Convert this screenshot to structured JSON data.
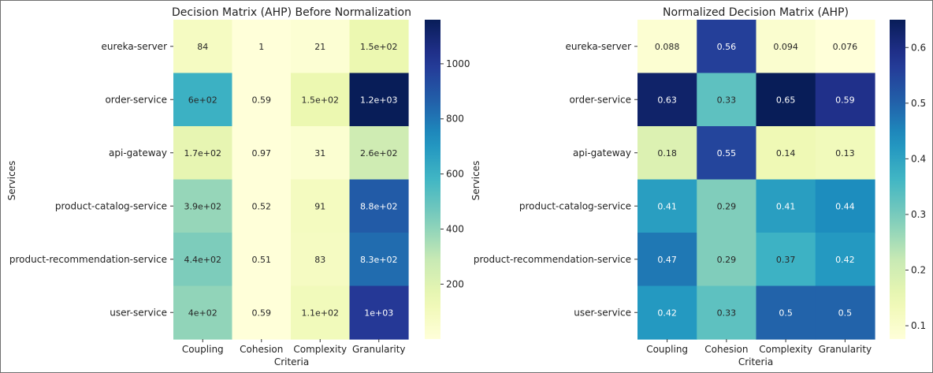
{
  "chart_data": [
    {
      "type": "heatmap",
      "title": "Decision Matrix (AHP) Before Normalization",
      "xlabel": "Criteria",
      "ylabel": "Services",
      "x": [
        "Coupling",
        "Cohesion",
        "Complexity",
        "Granularity"
      ],
      "y": [
        "eureka-server",
        "order-service",
        "api-gateway",
        "product-catalog-service",
        "product-recommendation-service",
        "user-service"
      ],
      "values": [
        [
          84,
          1,
          21,
          150
        ],
        [
          600,
          0.59,
          150,
          1200
        ],
        [
          170,
          0.97,
          31,
          260
        ],
        [
          390,
          0.52,
          91,
          880
        ],
        [
          440,
          0.51,
          83,
          830
        ],
        [
          400,
          0.59,
          110,
          1000
        ]
      ],
      "annotations": [
        [
          "84",
          "1",
          "21",
          "1.5e+02"
        ],
        [
          "6e+02",
          "0.59",
          "1.5e+02",
          "1.2e+03"
        ],
        [
          "1.7e+02",
          "0.97",
          "31",
          "2.6e+02"
        ],
        [
          "3.9e+02",
          "0.52",
          "91",
          "8.8e+02"
        ],
        [
          "4.4e+02",
          "0.51",
          "83",
          "8.3e+02"
        ],
        [
          "4e+02",
          "0.59",
          "1.1e+02",
          "1e+03"
        ]
      ],
      "colorbar": {
        "cmap": "YlGnBu",
        "vmin": 0.51,
        "vmax": 1160,
        "ticks": [
          200,
          400,
          600,
          800,
          1000
        ],
        "tick_labels": [
          "200",
          "400",
          "600",
          "800",
          "1000"
        ]
      }
    },
    {
      "type": "heatmap",
      "title": "Normalized Decision Matrix (AHP)",
      "xlabel": "Criteria",
      "ylabel": "Services",
      "x": [
        "Coupling",
        "Cohesion",
        "Complexity",
        "Granularity"
      ],
      "y": [
        "eureka-server",
        "order-service",
        "api-gateway",
        "product-catalog-service",
        "product-recommendation-service",
        "user-service"
      ],
      "values": [
        [
          0.088,
          0.56,
          0.094,
          0.076
        ],
        [
          0.63,
          0.33,
          0.65,
          0.59
        ],
        [
          0.18,
          0.55,
          0.14,
          0.13
        ],
        [
          0.41,
          0.29,
          0.41,
          0.44
        ],
        [
          0.47,
          0.29,
          0.37,
          0.42
        ],
        [
          0.42,
          0.33,
          0.5,
          0.5
        ]
      ],
      "annotations": [
        [
          "0.088",
          "0.56",
          "0.094",
          "0.076"
        ],
        [
          "0.63",
          "0.33",
          "0.65",
          "0.59"
        ],
        [
          "0.18",
          "0.55",
          "0.14",
          "0.13"
        ],
        [
          "0.41",
          "0.29",
          "0.41",
          "0.44"
        ],
        [
          "0.47",
          "0.29",
          "0.37",
          "0.42"
        ],
        [
          "0.42",
          "0.33",
          "0.5",
          "0.5"
        ]
      ],
      "colorbar": {
        "cmap": "YlGnBu",
        "vmin": 0.076,
        "vmax": 0.65,
        "ticks": [
          0.1,
          0.2,
          0.3,
          0.4,
          0.5,
          0.6
        ],
        "tick_labels": [
          "0.1",
          "0.2",
          "0.3",
          "0.4",
          "0.5",
          "0.6"
        ]
      }
    }
  ]
}
